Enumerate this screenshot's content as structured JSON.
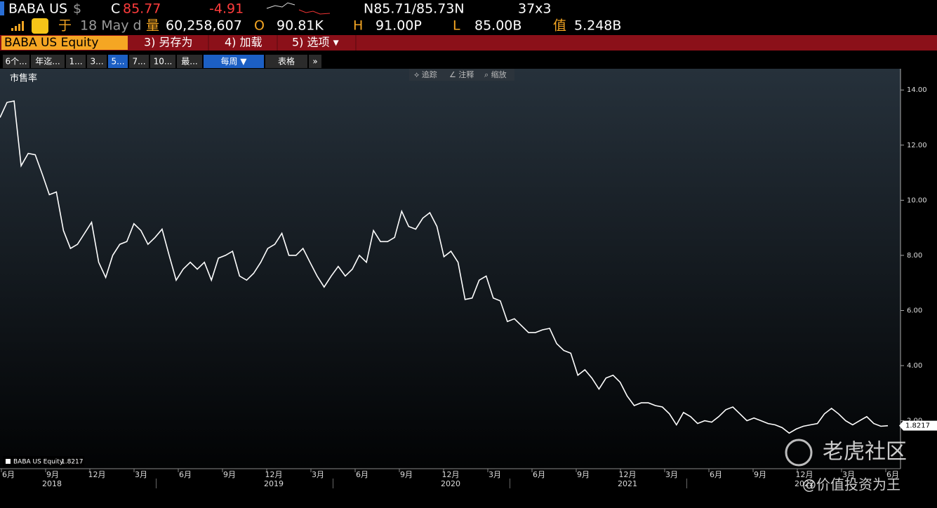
{
  "header": {
    "ticker": "BABA US",
    "currency": "$",
    "c_label": "C",
    "price": "85.77",
    "change": "-4.91",
    "bid_ask": "N85.71/85.73N",
    "size": "37x3",
    "at_label": "于",
    "date": "18 May d",
    "vol_label": "量",
    "volume": "60,258,607",
    "o_label": "O",
    "open": "90.81K",
    "h_label": "H",
    "high": "91.00P",
    "l_label": "L",
    "low": "85.00B",
    "val_label": "值",
    "value": "5.248B"
  },
  "menu": {
    "security": "BABA US Equity",
    "items": [
      "3) 另存为",
      "4) 加载",
      "5) 选项 ▾"
    ]
  },
  "tabs": [
    "6个...",
    "年迄...",
    "1...",
    "3...",
    "5...",
    "7...",
    "10...",
    "最...",
    "每周 ▼",
    "表格",
    "»"
  ],
  "tools": [
    "⟡ 追踪",
    "∠ 注释",
    "⌕ 缩放"
  ],
  "watermark": {
    "brand": "老虎社区",
    "author": "@价值投资为王"
  },
  "chart_data": {
    "type": "line",
    "title": "市售率",
    "series_name": "BABA US Equity",
    "last_label": "1.8217",
    "color": "#ffffff",
    "values": [
      13.0,
      13.55,
      13.6,
      11.25,
      11.7,
      11.65,
      10.95,
      10.2,
      10.3,
      8.9,
      8.25,
      8.4,
      8.8,
      9.2,
      7.75,
      7.2,
      8.0,
      8.4,
      8.5,
      9.15,
      8.9,
      8.4,
      8.65,
      8.95,
      8.0,
      7.1,
      7.5,
      7.75,
      7.5,
      7.75,
      7.1,
      7.9,
      8.0,
      8.15,
      7.25,
      7.1,
      7.35,
      7.75,
      8.25,
      8.4,
      8.8,
      8.0,
      8.0,
      8.25,
      7.75,
      7.25,
      6.85,
      7.25,
      7.6,
      7.25,
      7.5,
      8.0,
      7.75,
      8.9,
      8.5,
      8.5,
      8.65,
      9.6,
      9.05,
      8.95,
      9.35,
      9.55,
      9.05,
      7.95,
      8.15,
      7.75,
      6.4,
      6.45,
      7.1,
      7.25,
      6.45,
      6.35,
      5.6,
      5.7,
      5.45,
      5.2,
      5.2,
      5.3,
      5.35,
      4.8,
      4.55,
      4.45,
      3.65,
      3.85,
      3.55,
      3.15,
      3.55,
      3.65,
      3.4,
      2.9,
      2.55,
      2.65,
      2.65,
      2.55,
      2.5,
      2.25,
      1.85,
      2.3,
      2.15,
      1.9,
      2.0,
      1.95,
      2.15,
      2.4,
      2.5,
      2.25,
      2.0,
      2.1,
      2.0,
      1.9,
      1.85,
      1.75,
      1.55,
      1.7,
      1.8,
      1.85,
      1.9,
      2.25,
      2.45,
      2.25,
      2.0,
      1.85,
      2.0,
      2.15,
      1.9,
      1.8,
      1.8217
    ],
    "ylim": [
      0.26,
      14.77
    ],
    "yticks": [
      {
        "value": 2,
        "label": "2.00"
      },
      {
        "value": 4,
        "label": "4.00"
      },
      {
        "value": 6,
        "label": "6.00"
      },
      {
        "value": 8,
        "label": "8.00"
      },
      {
        "value": 10,
        "label": "10.00"
      },
      {
        "value": 12,
        "label": "12.00"
      },
      {
        "value": 14,
        "label": "14.00"
      }
    ],
    "month_ticks": [
      "6月",
      "9月",
      "12月",
      "3月",
      "6月",
      "9月",
      "12月",
      "3月",
      "6月",
      "9月",
      "12月",
      "3月",
      "6月",
      "9月",
      "12月",
      "3月",
      "6月",
      "9月",
      "12月",
      "3月",
      "6月"
    ],
    "years": [
      "2018",
      "2019",
      "2020",
      "2021",
      "2022"
    ]
  }
}
